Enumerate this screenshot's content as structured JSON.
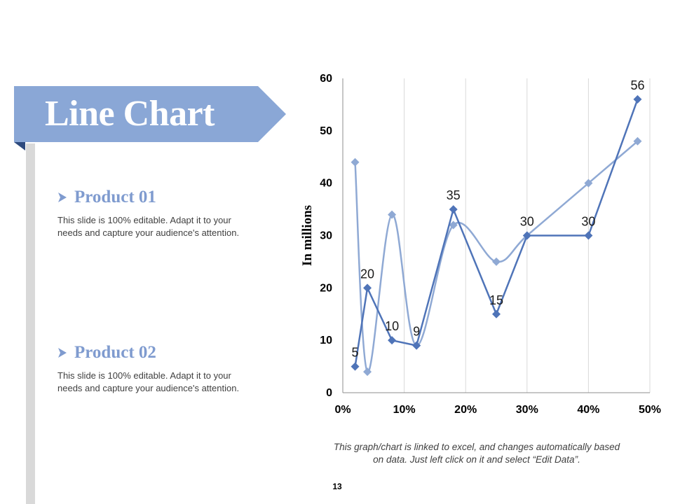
{
  "slide": {
    "title": "Line Chart",
    "page_number": "13",
    "note": "This graph/chart is linked to excel, and changes automatically based on data. Just left click on it and select “Edit Data”.",
    "colors": {
      "banner": "#8aa7d6",
      "banner_fold": "#2e4a7e",
      "side_bar": "#d9d9d9",
      "heading": "#7f9bcf"
    }
  },
  "products": [
    {
      "title": "Product 01",
      "description": "This slide is 100% editable. Adapt it to your needs and capture your audience's attention.",
      "icon": "arrow-right-icon"
    },
    {
      "title": "Product 02",
      "description": "This slide is 100% editable. Adapt it to your needs and capture your audience's attention.",
      "icon": "arrow-right-icon"
    }
  ],
  "chart_data": {
    "type": "scatter",
    "ylabel": "In millions",
    "xlim": [
      0,
      50
    ],
    "ylim": [
      0,
      60
    ],
    "x_ticks": [
      "0%",
      "10%",
      "20%",
      "30%",
      "40%",
      "50%"
    ],
    "y_ticks": [
      "0",
      "10",
      "20",
      "30",
      "40",
      "50",
      "60"
    ],
    "grid": "vertical",
    "series": [
      {
        "style": "straight lines with markers",
        "color": "#4f74b8",
        "points": [
          {
            "x": 2,
            "y": 5
          },
          {
            "x": 4,
            "y": 20
          },
          {
            "x": 8,
            "y": 10
          },
          {
            "x": 12,
            "y": 9
          },
          {
            "x": 18,
            "y": 35
          },
          {
            "x": 25,
            "y": 15
          },
          {
            "x": 30,
            "y": 30
          },
          {
            "x": 40,
            "y": 30
          },
          {
            "x": 48,
            "y": 56
          }
        ],
        "data_labels": [
          "5",
          "20",
          "10",
          "9",
          "35",
          "15",
          "30",
          "30",
          "56"
        ]
      },
      {
        "style": "smooth lines with markers",
        "color": "#8fa9d4",
        "points": [
          {
            "x": 2,
            "y": 44
          },
          {
            "x": 4,
            "y": 4
          },
          {
            "x": 8,
            "y": 34
          },
          {
            "x": 12,
            "y": 9
          },
          {
            "x": 18,
            "y": 32
          },
          {
            "x": 25,
            "y": 25
          },
          {
            "x": 30,
            "y": 30
          },
          {
            "x": 40,
            "y": 40
          },
          {
            "x": 48,
            "y": 48
          }
        ]
      }
    ]
  }
}
